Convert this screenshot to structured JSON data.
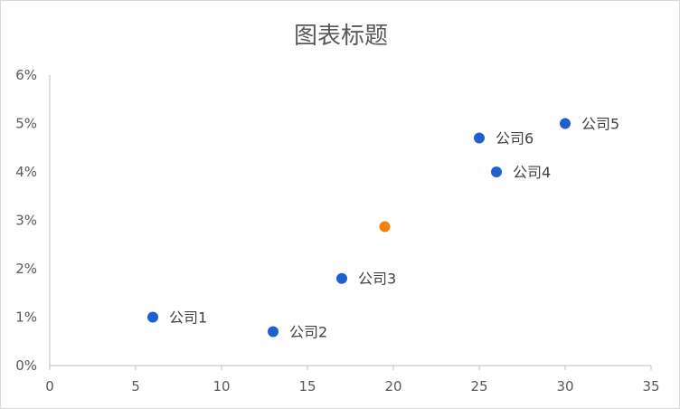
{
  "chart_data": {
    "type": "scatter",
    "title": "图表标题",
    "xlabel": "",
    "ylabel": "",
    "xlim": [
      0,
      35
    ],
    "ylim": [
      0,
      0.06
    ],
    "x_ticks": [
      "0",
      "5",
      "10",
      "15",
      "20",
      "25",
      "30",
      "35"
    ],
    "y_ticks": [
      "0%",
      "1%",
      "2%",
      "3%",
      "4%",
      "5%",
      "6%"
    ],
    "grid": false,
    "legend": "none",
    "series": [
      {
        "color": "#1f5fcf",
        "points": [
          {
            "x": 6,
            "y": 0.01,
            "label": "公司1"
          },
          {
            "x": 13,
            "y": 0.007,
            "label": "公司2"
          },
          {
            "x": 17,
            "y": 0.018,
            "label": "公司3"
          },
          {
            "x": 26,
            "y": 0.04,
            "label": "公司4"
          },
          {
            "x": 30,
            "y": 0.05,
            "label": "公司5"
          },
          {
            "x": 25,
            "y": 0.047,
            "label": "公司6"
          }
        ]
      },
      {
        "color": "#f5820a",
        "points": [
          {
            "x": 19.5,
            "y": 0.0287,
            "label": ""
          }
        ]
      }
    ]
  }
}
